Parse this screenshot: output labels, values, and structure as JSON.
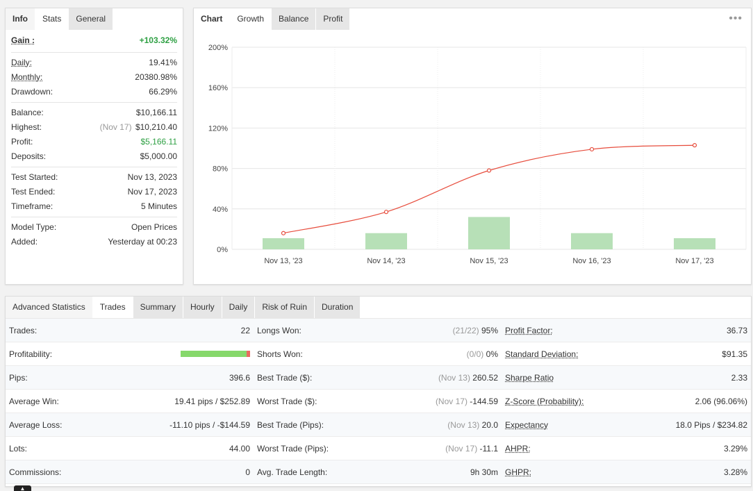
{
  "info_panel": {
    "tabs": [
      "Info",
      "Stats",
      "General"
    ],
    "active_tab": "Stats",
    "gain": {
      "label": "Gain :",
      "value": "+103.32%"
    },
    "group1": [
      {
        "label": "Daily:",
        "value": "19.41%"
      },
      {
        "label": "Monthly:",
        "value": "20380.98%"
      },
      {
        "label": "Drawdown:",
        "value": "66.29%"
      }
    ],
    "group2": {
      "balance": {
        "label": "Balance:",
        "value": "$10,166.11"
      },
      "highest": {
        "label": "Highest:",
        "note": "(Nov 17)",
        "value": "$10,210.40"
      },
      "profit": {
        "label": "Profit:",
        "value": "$5,166.11"
      },
      "deposits": {
        "label": "Deposits:",
        "value": "$5,000.00"
      }
    },
    "group3": [
      {
        "label": "Test Started:",
        "value": "Nov 13, 2023"
      },
      {
        "label": "Test Ended:",
        "value": "Nov 17, 2023"
      },
      {
        "label": "Timeframe:",
        "value": "5 Minutes"
      }
    ],
    "group4": [
      {
        "label": "Model Type:",
        "value": "Open Prices"
      },
      {
        "label": "Added:",
        "value": "Yesterday at 00:23"
      }
    ]
  },
  "chart_panel": {
    "tabs": [
      "Chart",
      "Growth",
      "Balance",
      "Profit"
    ],
    "active_tab": "Growth",
    "menu_icon": "more-dots-icon"
  },
  "chart_data": {
    "type": "line",
    "categories": [
      "Nov 13, '23",
      "Nov 14, '23",
      "Nov 15, '23",
      "Nov 16, '23",
      "Nov 17, '23"
    ],
    "series": [
      {
        "type": "line",
        "values": [
          16,
          37,
          78,
          99,
          103
        ],
        "color": "#e74c3c"
      },
      {
        "type": "bar",
        "values": [
          11,
          16,
          32,
          16,
          11
        ],
        "color": "#b7e0b7"
      }
    ],
    "yticks": [
      "200%",
      "160%",
      "120%",
      "80%",
      "40%",
      "0%"
    ],
    "ylim": [
      0,
      200
    ],
    "grid": true
  },
  "advanced": {
    "tabs": [
      "Advanced Statistics",
      "Trades",
      "Summary",
      "Hourly",
      "Daily",
      "Risk of Ruin",
      "Duration"
    ],
    "active_tab": "Trades",
    "col1": [
      {
        "label": "Trades:",
        "value": "22"
      },
      {
        "label": "Profitability:",
        "value": ""
      },
      {
        "label": "Pips:",
        "value": "396.6"
      },
      {
        "label": "Average Win:",
        "value": "19.41 pips / $252.89"
      },
      {
        "label": "Average Loss:",
        "value": "-11.10 pips / -$144.59"
      },
      {
        "label": "Lots:",
        "value": "44.00"
      },
      {
        "label": "Commissions:",
        "value": "0"
      }
    ],
    "profitability_win_pct": 95,
    "col2": [
      {
        "label": "Longs Won:",
        "note": "(21/22)",
        "value": "95%"
      },
      {
        "label": "Shorts Won:",
        "note": "(0/0)",
        "value": "0%"
      },
      {
        "label": "Best Trade ($):",
        "note": "(Nov 13)",
        "value": "260.52"
      },
      {
        "label": "Worst Trade ($):",
        "note": "(Nov 17)",
        "value": "-144.59"
      },
      {
        "label": "Best Trade (Pips):",
        "note": "(Nov 13)",
        "value": "20.0"
      },
      {
        "label": "Worst Trade (Pips):",
        "note": "(Nov 17)",
        "value": "-11.1"
      },
      {
        "label": "Avg. Trade Length:",
        "note": "",
        "value": "9h 30m"
      }
    ],
    "col3": [
      {
        "label": "Profit Factor:",
        "value": "36.73"
      },
      {
        "label": "Standard Deviation:",
        "value": "$91.35"
      },
      {
        "label": "Sharpe Ratio",
        "value": "2.33"
      },
      {
        "label": "Z-Score (Probability):",
        "value": "2.06 (96.06%)"
      },
      {
        "label": "Expectancy",
        "value": "18.0 Pips / $234.82"
      },
      {
        "label": "AHPR:",
        "value": "3.29%"
      },
      {
        "label": "GHPR:",
        "value": "3.28%"
      }
    ]
  }
}
